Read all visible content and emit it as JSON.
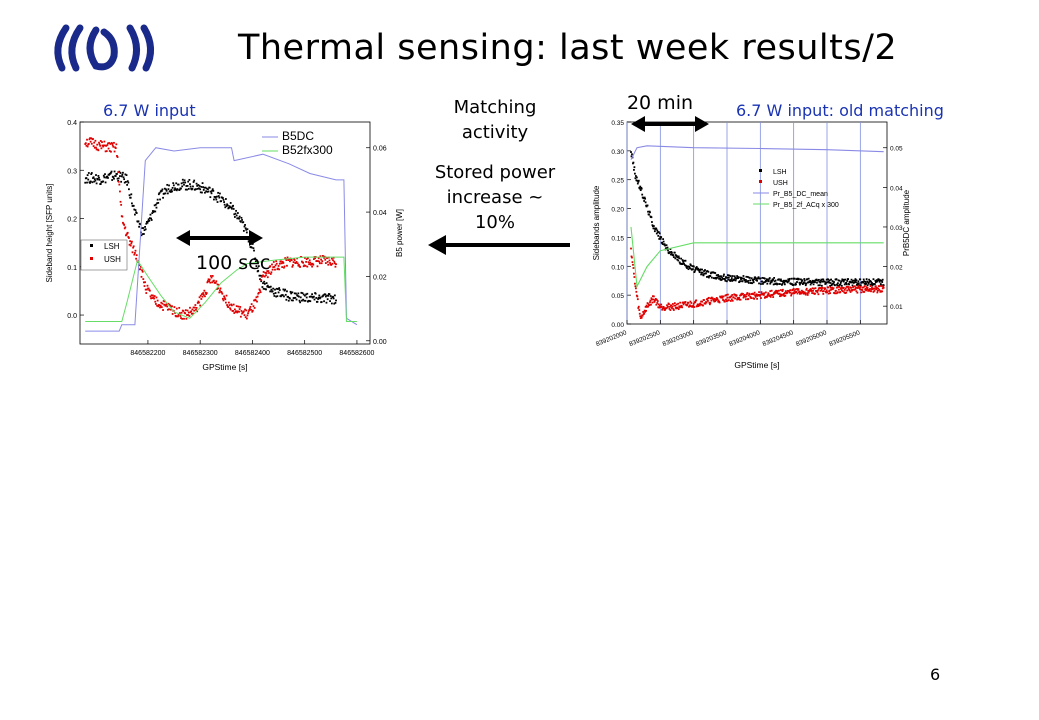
{
  "slide": {
    "title": "Thermal sensing: last week results/2",
    "page_number": "6",
    "left_label": "6.7 W input",
    "right_label": "6.7 W input: old matching",
    "matching_text": [
      "Matching",
      "activity"
    ],
    "stored_power_text": [
      "Stored power",
      "increase  ~",
      "10%"
    ],
    "left_interval": "100 sec",
    "right_interval": "20 min",
    "colors": {
      "label_blue": "#1a33b3",
      "lsh": "#000000",
      "ush": "#e00000",
      "b5dc": "#8a8ae6",
      "b52f": "#66dd66"
    }
  },
  "chart_data": [
    {
      "type": "scatter",
      "xlabel": "GPStime [s]",
      "ylabel": "Sideband height [SFP units]",
      "y2label": "B5 power [W]",
      "xticks": [
        "846582200",
        "846582300",
        "846582400",
        "846582500",
        "846582600"
      ],
      "yticks": [
        "0.0",
        "0.1",
        "0.2",
        "0.3",
        "0.4"
      ],
      "y2ticks": [
        "0.00",
        "0.02",
        "0.04",
        "0.06"
      ],
      "xlim": [
        846582070,
        846582625
      ],
      "ylim": [
        -0.06,
        0.4
      ],
      "y2lim": [
        -0.001,
        0.068
      ],
      "legend_top": [
        "B5DC",
        "B52fx300"
      ],
      "legend_bottom": [
        "LSH",
        "USH"
      ],
      "series": [
        {
          "name": "LSH",
          "axis": "y",
          "points": [
            [
              846582080,
              0.285
            ],
            [
              846582110,
              0.282
            ],
            [
              846582140,
              0.29
            ],
            [
              846582160,
              0.28
            ],
            [
              846582175,
              0.21
            ],
            [
              846582190,
              0.17
            ],
            [
              846582205,
              0.2
            ],
            [
              846582220,
              0.24
            ],
            [
              846582240,
              0.265
            ],
            [
              846582260,
              0.27
            ],
            [
              846582280,
              0.27
            ],
            [
              846582300,
              0.265
            ],
            [
              846582320,
              0.255
            ],
            [
              846582340,
              0.24
            ],
            [
              846582360,
              0.22
            ],
            [
              846582375,
              0.2
            ],
            [
              846582390,
              0.17
            ],
            [
              846582400,
              0.14
            ],
            [
              846582410,
              0.1
            ],
            [
              846582420,
              0.065
            ],
            [
              846582440,
              0.05
            ],
            [
              846582470,
              0.04
            ],
            [
              846582500,
              0.036
            ],
            [
              846582530,
              0.034
            ],
            [
              846582560,
              0.034
            ]
          ]
        },
        {
          "name": "USH",
          "axis": "y",
          "points": [
            [
              846582080,
              0.36
            ],
            [
              846582110,
              0.35
            ],
            [
              846582140,
              0.345
            ],
            [
              846582150,
              0.2
            ],
            [
              846582165,
              0.15
            ],
            [
              846582180,
              0.12
            ],
            [
              846582195,
              0.06
            ],
            [
              846582210,
              0.03
            ],
            [
              846582230,
              0.02
            ],
            [
              846582250,
              0.01
            ],
            [
              846582270,
              0.0
            ],
            [
              846582290,
              0.01
            ],
            [
              846582310,
              0.05
            ],
            [
              846582320,
              0.075
            ],
            [
              846582335,
              0.06
            ],
            [
              846582350,
              0.03
            ],
            [
              846582370,
              0.01
            ],
            [
              846582390,
              0.0
            ],
            [
              846582410,
              0.03
            ],
            [
              846582420,
              0.08
            ],
            [
              846582440,
              0.1
            ],
            [
              846582470,
              0.11
            ],
            [
              846582500,
              0.11
            ],
            [
              846582530,
              0.112
            ],
            [
              846582560,
              0.11
            ]
          ]
        },
        {
          "name": "B5DC",
          "axis": "y2",
          "points": [
            [
              846582080,
              0.003
            ],
            [
              846582145,
              0.003
            ],
            [
              846582150,
              0.005
            ],
            [
              846582175,
              0.005
            ],
            [
              846582195,
              0.056
            ],
            [
              846582215,
              0.06
            ],
            [
              846582250,
              0.059
            ],
            [
              846582300,
              0.06
            ],
            [
              846582360,
              0.06
            ],
            [
              846582365,
              0.056
            ],
            [
              846582420,
              0.058
            ],
            [
              846582470,
              0.055
            ],
            [
              846582510,
              0.052
            ],
            [
              846582560,
              0.05
            ],
            [
              846582575,
              0.05
            ],
            [
              846582580,
              0.007
            ],
            [
              846582600,
              0.005
            ]
          ]
        },
        {
          "name": "B52fx300",
          "axis": "y2",
          "points": [
            [
              846582080,
              0.006
            ],
            [
              846582150,
              0.006
            ],
            [
              846582160,
              0.012
            ],
            [
              846582180,
              0.025
            ],
            [
              846582200,
              0.02
            ],
            [
              846582225,
              0.014
            ],
            [
              846582250,
              0.009
            ],
            [
              846582280,
              0.007
            ],
            [
              846582310,
              0.012
            ],
            [
              846582340,
              0.018
            ],
            [
              846582370,
              0.022
            ],
            [
              846582390,
              0.024
            ],
            [
              846582440,
              0.025
            ],
            [
              846582500,
              0.026
            ],
            [
              846582560,
              0.026
            ],
            [
              846582575,
              0.026
            ],
            [
              846582580,
              0.006
            ],
            [
              846582600,
              0.006
            ]
          ]
        }
      ]
    },
    {
      "type": "scatter",
      "xlabel": "GPStime [s]",
      "ylabel": "Sidebands amplitude",
      "y2label": "PrB5DC amplitude",
      "xticks": [
        "839202000",
        "839202500",
        "839203000",
        "839203500",
        "839204000",
        "839204500",
        "839205000",
        "839205500"
      ],
      "yticks": [
        "0.00",
        "0.05",
        "0.10",
        "0.15",
        "0.20",
        "0.25",
        "0.30",
        "0.35"
      ],
      "y2ticks": [
        "0.01",
        "0.02",
        "0.03",
        "0.04",
        "0.05"
      ],
      "xlim": [
        839202000,
        839205900
      ],
      "ylim": [
        0,
        0.35
      ],
      "y2lim": [
        0.0055,
        0.0565
      ],
      "legend": [
        "LSH",
        "USH",
        "Pr_B5_DC_mean",
        "Pr_B5_2f_ACq x 300"
      ],
      "series": [
        {
          "name": "LSH",
          "axis": "y",
          "points": [
            [
              839202060,
              0.3
            ],
            [
              839202120,
              0.26
            ],
            [
              839202250,
              0.22
            ],
            [
              839202400,
              0.17
            ],
            [
              839202600,
              0.13
            ],
            [
              839202800,
              0.11
            ],
            [
              839203000,
              0.095
            ],
            [
              839203250,
              0.085
            ],
            [
              839203500,
              0.08
            ],
            [
              839204000,
              0.075
            ],
            [
              839204500,
              0.073
            ],
            [
              839205000,
              0.072
            ],
            [
              839205500,
              0.072
            ],
            [
              839205850,
              0.072
            ]
          ]
        },
        {
          "name": "USH",
          "axis": "y",
          "points": [
            [
              839202060,
              0.13
            ],
            [
              839202120,
              0.07
            ],
            [
              839202200,
              0.01
            ],
            [
              839202300,
              0.03
            ],
            [
              839202400,
              0.045
            ],
            [
              839202500,
              0.03
            ],
            [
              839202700,
              0.03
            ],
            [
              839203000,
              0.035
            ],
            [
              839203500,
              0.045
            ],
            [
              839204000,
              0.05
            ],
            [
              839204500,
              0.055
            ],
            [
              839205000,
              0.058
            ],
            [
              839205500,
              0.06
            ],
            [
              839205850,
              0.06
            ]
          ]
        },
        {
          "name": "Pr_B5_DC_mean",
          "axis": "y2",
          "points": [
            [
              839202060,
              0.047
            ],
            [
              839202150,
              0.05
            ],
            [
              839202300,
              0.0505
            ],
            [
              839203000,
              0.05
            ],
            [
              839204000,
              0.0498
            ],
            [
              839205000,
              0.0495
            ],
            [
              839205850,
              0.049
            ]
          ]
        },
        {
          "name": "Pr_B5_2f_ACq x 300",
          "axis": "y2",
          "points": [
            [
              839202060,
              0.03
            ],
            [
              839202150,
              0.015
            ],
            [
              839202300,
              0.02
            ],
            [
              839202500,
              0.024
            ],
            [
              839203000,
              0.026
            ],
            [
              839204000,
              0.026
            ],
            [
              839205000,
              0.026
            ],
            [
              839205850,
              0.026
            ]
          ]
        }
      ]
    }
  ]
}
